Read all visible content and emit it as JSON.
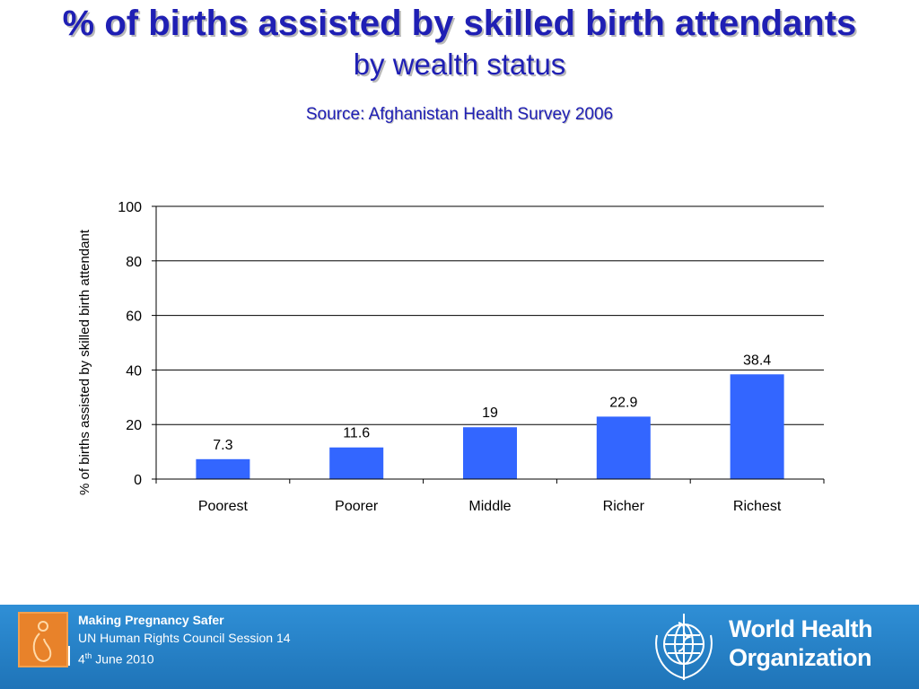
{
  "slide": {
    "title": "% of births assisted by skilled birth attendants",
    "subtitle": "by wealth status",
    "source": "Source: Afghanistan Health Survey 2006"
  },
  "chart_data": {
    "type": "bar",
    "categories": [
      "Poorest",
      "Poorer",
      "Middle",
      "Richer",
      "Richest"
    ],
    "values": [
      7.3,
      11.6,
      19,
      22.9,
      38.4
    ],
    "data_labels": [
      "7.3",
      "11.6",
      "19",
      "22.9",
      "38.4"
    ],
    "ylabel": "% of births assisted by skilled birth attendant",
    "xlabel": "",
    "ylim": [
      0,
      100
    ],
    "yticks": [
      0,
      20,
      40,
      60,
      80,
      100
    ],
    "grid": true,
    "legend": "none",
    "bar_color": "#3366ff"
  },
  "footer": {
    "line1": "Making Pregnancy Safer",
    "line2": "UN Human Rights Council Session 14",
    "date_day": "4",
    "date_sup": "th",
    "date_rest": " June 2010",
    "org_line1": "World Health",
    "org_line2": "Organization",
    "logo_icon": "pregnant-woman-icon",
    "org_icon": "who-emblem-icon",
    "background_color": "#2a86cc"
  }
}
